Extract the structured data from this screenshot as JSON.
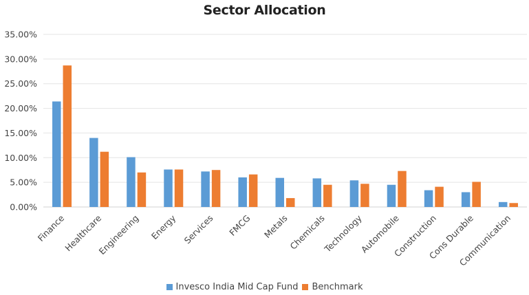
{
  "chart_data": {
    "type": "bar",
    "title": "Sector Allocation",
    "xlabel": "",
    "ylabel": "",
    "ylim": [
      0,
      35
    ],
    "yticks": [
      0,
      5,
      10,
      15,
      20,
      25,
      30,
      35
    ],
    "ytick_labels": [
      "0.00%",
      "5.00%",
      "10.00%",
      "15.00%",
      "20.00%",
      "25.00%",
      "30.00%",
      "35.00%"
    ],
    "grid": true,
    "legend_position": "bottom",
    "categories": [
      "Finance",
      "Healthcare",
      "Engineering",
      "Energy",
      "Services",
      "FMCG",
      "Metals",
      "Chemicals",
      "Technology",
      "Automobile",
      "Construction",
      "Cons Durable",
      "Communication"
    ],
    "series": [
      {
        "name": "Invesco India Mid Cap Fund",
        "color": "#5B9BD5",
        "values": [
          21.4,
          14.0,
          10.1,
          7.6,
          7.2,
          6.0,
          5.9,
          5.8,
          5.4,
          4.5,
          3.4,
          3.0,
          1.0
        ]
      },
      {
        "name": "Benchmark",
        "color": "#ED7D31",
        "values": [
          28.7,
          11.2,
          7.0,
          7.6,
          7.5,
          6.6,
          1.8,
          4.5,
          4.7,
          7.3,
          4.1,
          5.1,
          0.8
        ]
      }
    ]
  }
}
